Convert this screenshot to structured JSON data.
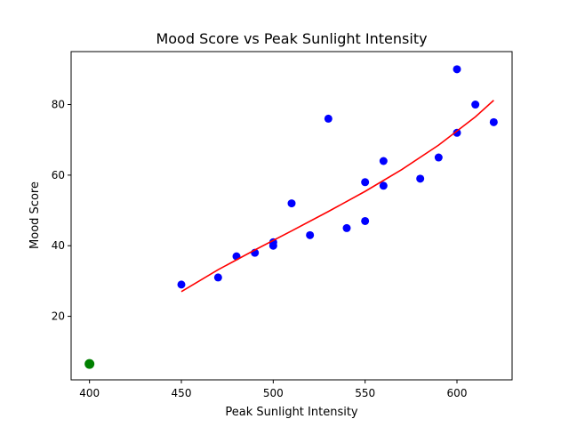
{
  "chart_data": {
    "type": "scatter",
    "title": "Mood Score vs Peak Sunlight Intensity",
    "xlabel": "Peak Sunlight Intensity",
    "ylabel": "Mood Score",
    "xlim": [
      390,
      630
    ],
    "ylim": [
      2,
      95
    ],
    "xticks": [
      400,
      450,
      500,
      550,
      600
    ],
    "yticks": [
      20,
      40,
      60,
      80
    ],
    "grid": false,
    "series": [
      {
        "type": "scatter",
        "color": "#0000ff",
        "points": [
          [
            450,
            29
          ],
          [
            470,
            31
          ],
          [
            480,
            37
          ],
          [
            490,
            38
          ],
          [
            500,
            40
          ],
          [
            500,
            41
          ],
          [
            510,
            52
          ],
          [
            520,
            43
          ],
          [
            530,
            76
          ],
          [
            540,
            45
          ],
          [
            550,
            58
          ],
          [
            550,
            47
          ],
          [
            560,
            64
          ],
          [
            560,
            57
          ],
          [
            580,
            59
          ],
          [
            590,
            65
          ],
          [
            600,
            90
          ],
          [
            600,
            72
          ],
          [
            610,
            80
          ],
          [
            620,
            75
          ]
        ]
      },
      {
        "type": "scatter",
        "color": "#008000",
        "points": [
          [
            400,
            6.5
          ]
        ]
      },
      {
        "type": "line",
        "color": "#ff0000",
        "points": [
          [
            450,
            27
          ],
          [
            470,
            33.2
          ],
          [
            490,
            38.8
          ],
          [
            510,
            44.2
          ],
          [
            530,
            49.7
          ],
          [
            550,
            55.4
          ],
          [
            570,
            61.6
          ],
          [
            590,
            68.5
          ],
          [
            610,
            76.5
          ],
          [
            620,
            81.2
          ]
        ]
      }
    ]
  }
}
